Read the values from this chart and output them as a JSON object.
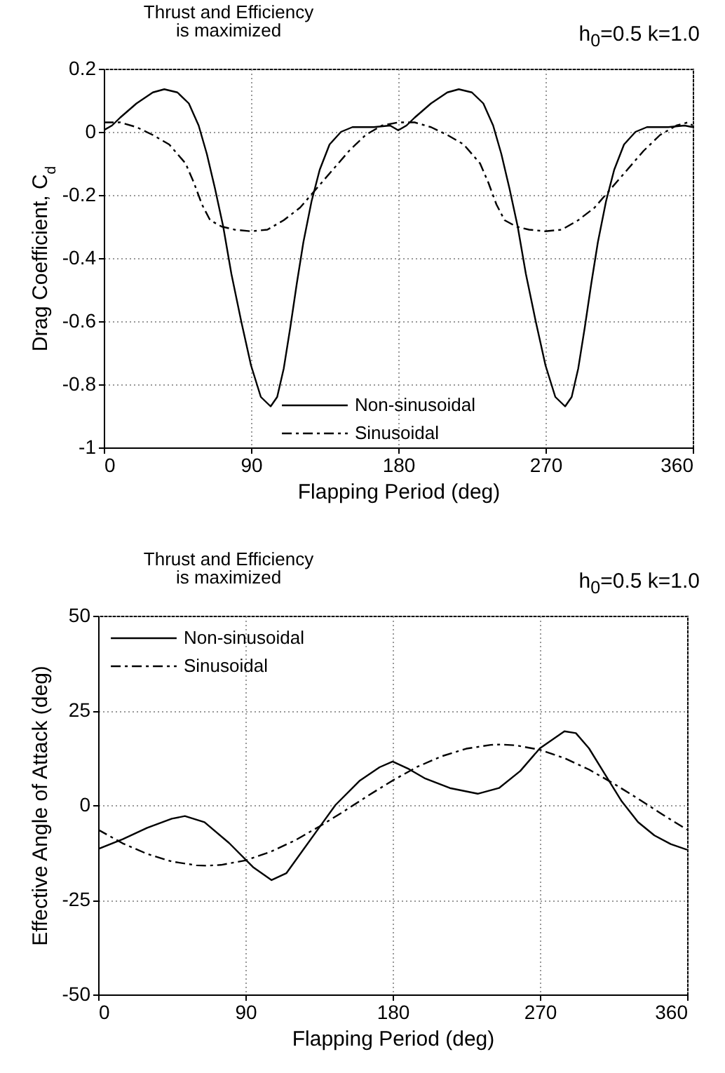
{
  "chart_data": [
    {
      "type": "line",
      "xlabel": "Flapping Period (deg)",
      "ylabel": "Drag Coefficient, C$_{d}$",
      "annotations": [
        "Thrust and Efficiency\nis maximized",
        "h$_{0}$=0.5   k=1.0"
      ],
      "xlim": [
        0,
        360
      ],
      "xticks": [
        0,
        90,
        180,
        270,
        360
      ],
      "ylim": [
        -1,
        0.2
      ],
      "yticks": [
        -1,
        -0.8,
        -0.6,
        -0.4,
        -0.2,
        0,
        0.2
      ],
      "grid": true,
      "legend": "bottom",
      "series": [
        {
          "name": "Non-sinusoidal",
          "color": "#000000",
          "line_style": "solid",
          "x": [
            0,
            5,
            10,
            20,
            30,
            37,
            45,
            52,
            58,
            63,
            68,
            73,
            78,
            84,
            90,
            96,
            102,
            106,
            110,
            114,
            118,
            122,
            127,
            132,
            138,
            145,
            152,
            165,
            175,
            180,
            185,
            190,
            200,
            210,
            217,
            225,
            232,
            238,
            243,
            248,
            253,
            258,
            264,
            270,
            276,
            282,
            286,
            290,
            294,
            298,
            302,
            307,
            312,
            318,
            325,
            332,
            345,
            355,
            360
          ],
          "values": [
            0.005,
            0.02,
            0.045,
            0.09,
            0.125,
            0.135,
            0.125,
            0.09,
            0.02,
            -0.07,
            -0.18,
            -0.3,
            -0.45,
            -0.6,
            -0.74,
            -0.84,
            -0.87,
            -0.84,
            -0.75,
            -0.62,
            -0.48,
            -0.35,
            -0.22,
            -0.12,
            -0.04,
            0,
            0.015,
            0.015,
            0.02,
            0.005,
            0.02,
            0.045,
            0.09,
            0.125,
            0.135,
            0.125,
            0.09,
            0.02,
            -0.07,
            -0.18,
            -0.3,
            -0.45,
            -0.6,
            -0.74,
            -0.84,
            -0.87,
            -0.84,
            -0.75,
            -0.62,
            -0.48,
            -0.35,
            -0.22,
            -0.12,
            -0.04,
            0,
            0.015,
            0.015,
            0.02,
            0.015
          ]
        },
        {
          "name": "Sinusoidal",
          "color": "#000000",
          "line_style": "dashed",
          "x": [
            0,
            10,
            20,
            30,
            40,
            50,
            55,
            60,
            65,
            72,
            80,
            90,
            100,
            110,
            120,
            130,
            140,
            150,
            160,
            170,
            180,
            190,
            200,
            210,
            220,
            230,
            235,
            240,
            245,
            252,
            260,
            270,
            280,
            290,
            300,
            310,
            320,
            330,
            340,
            350,
            357,
            360
          ],
          "values": [
            0.03,
            0.03,
            0.015,
            -0.01,
            -0.04,
            -0.1,
            -0.16,
            -0.23,
            -0.28,
            -0.3,
            -0.31,
            -0.315,
            -0.31,
            -0.28,
            -0.24,
            -0.18,
            -0.12,
            -0.06,
            -0.01,
            0.02,
            0.03,
            0.03,
            0.015,
            -0.01,
            -0.04,
            -0.1,
            -0.16,
            -0.23,
            -0.28,
            -0.3,
            -0.31,
            -0.315,
            -0.31,
            -0.28,
            -0.24,
            -0.18,
            -0.12,
            -0.06,
            -0.01,
            0.02,
            0.03,
            0.02
          ]
        }
      ]
    },
    {
      "type": "line",
      "xlabel": "Flapping Period (deg)",
      "ylabel": "Effective Angle of Attack (deg)",
      "annotations": [
        "Thrust and Efficiency\nis maximized",
        "h$_{0}$=0.5   k=1.0"
      ],
      "xlim": [
        0,
        360
      ],
      "xticks": [
        0,
        90,
        180,
        270,
        360
      ],
      "ylim": [
        -50,
        50
      ],
      "yticks": [
        -50,
        -25,
        0,
        25,
        50
      ],
      "grid": true,
      "legend": "top left",
      "series": [
        {
          "name": "Non-sinusoidal",
          "color": "#000000",
          "line_style": "solid",
          "x": [
            0,
            15,
            30,
            45,
            53,
            65,
            80,
            95,
            106,
            115,
            125,
            135,
            145,
            160,
            172,
            180,
            190,
            200,
            215,
            232,
            245,
            258,
            270,
            285,
            292,
            300,
            310,
            320,
            330,
            340,
            350,
            360
          ],
          "values": [
            -11.6,
            -9,
            -6,
            -3.6,
            -2.9,
            -4.5,
            -10,
            -16.5,
            -19.8,
            -18,
            -12,
            -6,
            0,
            6.5,
            10,
            11.5,
            9.5,
            7,
            4.5,
            3,
            4.5,
            9,
            15,
            19.5,
            19,
            15,
            8,
            1,
            -4.5,
            -8,
            -10.3,
            -11.8
          ]
        },
        {
          "name": "Sinusoidal",
          "color": "#000000",
          "line_style": "dashed",
          "x": [
            0,
            15,
            30,
            45,
            60,
            66,
            75,
            90,
            105,
            120,
            135,
            150,
            165,
            180,
            195,
            210,
            225,
            240,
            246,
            255,
            270,
            285,
            300,
            315,
            330,
            345,
            360
          ],
          "values": [
            -6.5,
            -10.1,
            -12.9,
            -14.9,
            -15.9,
            -16,
            -15.8,
            -14.6,
            -12.4,
            -9.4,
            -5.7,
            -1.7,
            2.5,
            6.5,
            10.1,
            12.9,
            14.9,
            15.9,
            16,
            15.8,
            14.6,
            12.4,
            9.4,
            5.7,
            1.7,
            -2.5,
            -6.5
          ]
        }
      ]
    }
  ]
}
